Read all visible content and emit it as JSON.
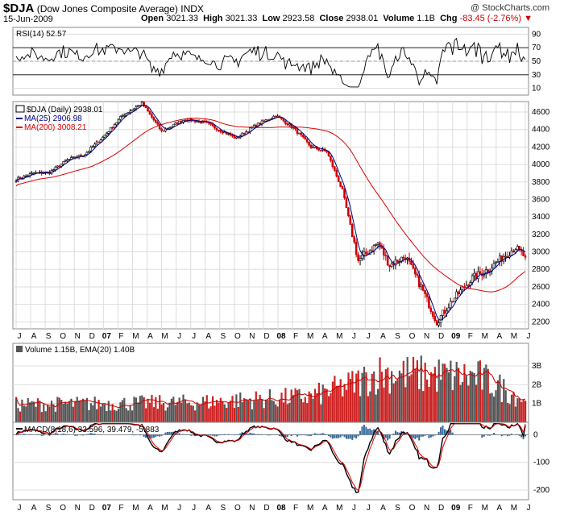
{
  "header": {
    "symbol": "$DJA",
    "name": "(Dow Jones Composite Average)",
    "exchange": "INDX",
    "date": "15-Jun-2009",
    "watermark": "@ StockCharts.com",
    "open_label": "Open",
    "open": "3021.33",
    "high_label": "High",
    "high": "3021.33",
    "low_label": "Low",
    "low": "2923.58",
    "close_label": "Close",
    "close": "2938.01",
    "volume_label": "Volume",
    "volume": "1.1B",
    "chg_label": "Chg",
    "chg": "-83.45 (-2.76%)",
    "chg_color": "#cc0000"
  },
  "colors": {
    "up": "#000000",
    "down": "#cc0000",
    "ma25": "#000080",
    "ma200": "#dd0000",
    "volume_up": "#555555",
    "volume_down": "#cc2222",
    "macd_hist": "#336699",
    "grid": "#dddddd",
    "grid_dash": "#999999"
  },
  "chart_data": [
    {
      "type": "line",
      "panel": "rsi",
      "title": "RSI(14) 52.57",
      "ylim": [
        0,
        100
      ],
      "yticks": [
        10,
        30,
        50,
        70,
        90
      ],
      "reference_lines": [
        30,
        70
      ],
      "n_points": 260,
      "last_value": 52.57
    },
    {
      "type": "candlestick",
      "panel": "price",
      "title": "$DJA (Daily) 2938.01",
      "ylim": [
        2120,
        4720
      ],
      "yticks": [
        2200,
        2400,
        2600,
        2800,
        3000,
        3200,
        3400,
        3600,
        3800,
        4000,
        4200,
        4400,
        4600
      ],
      "anchors_index": [
        0,
        9,
        17,
        26,
        35,
        44,
        54,
        64,
        74,
        86,
        96,
        112,
        122,
        132,
        141,
        150,
        158,
        166,
        174,
        184,
        190,
        198,
        206,
        214,
        222,
        232,
        240,
        248,
        254,
        259
      ],
      "anchors_close": [
        3830,
        3900,
        3910,
        4050,
        4120,
        4310,
        4560,
        4700,
        4380,
        4520,
        4480,
        4300,
        4450,
        4560,
        4420,
        4200,
        4150,
        3700,
        2900,
        3100,
        2850,
        2950,
        2600,
        2200,
        2450,
        2700,
        2800,
        2950,
        3050,
        2938
      ],
      "series": [
        {
          "name": "MA(25)",
          "last": "2906.98"
        },
        {
          "name": "MA(200)",
          "last": "3008.21"
        }
      ],
      "last_close": 2938.01
    },
    {
      "type": "bar",
      "panel": "volume",
      "title": "Volume 1.15B, EMA(20) 1.40B",
      "ylim": [
        0,
        4.2
      ],
      "yticks": [
        1,
        2,
        3
      ],
      "ytick_labels": [
        "1B",
        "2B",
        "3B"
      ],
      "anchors_index": [
        0,
        90,
        150,
        170,
        185,
        210,
        235,
        259
      ],
      "anchors_volume": [
        0.9,
        1.0,
        1.3,
        1.9,
        2.5,
        2.4,
        2.3,
        1.15
      ],
      "series": [
        {
          "name": "Volume",
          "last": "1.15B"
        },
        {
          "name": "EMA(20)",
          "last": "1.40B"
        }
      ]
    },
    {
      "type": "line",
      "panel": "macd",
      "title": "MACD(8,18,6) 33.596, 39.479, -5.883",
      "ylim": [
        -235,
        45
      ],
      "yticks": [
        0,
        -100,
        -200
      ],
      "series": [
        {
          "name": "MACD(8,18,6)",
          "last": 33.596
        },
        {
          "name": "Signal",
          "last": 39.479
        },
        {
          "name": "Histogram",
          "last": -5.883
        }
      ]
    }
  ],
  "x_axis": {
    "labels": [
      "J",
      "A",
      "S",
      "O",
      "N",
      "D",
      "07",
      "F",
      "M",
      "A",
      "M",
      "J",
      "J",
      "A",
      "S",
      "O",
      "N",
      "D",
      "08",
      "F",
      "M",
      "A",
      "M",
      "J",
      "J",
      "A",
      "S",
      "O",
      "N",
      "D",
      "09",
      "F",
      "M",
      "A",
      "M",
      "J"
    ],
    "bold": [
      "07",
      "08",
      "09"
    ]
  }
}
